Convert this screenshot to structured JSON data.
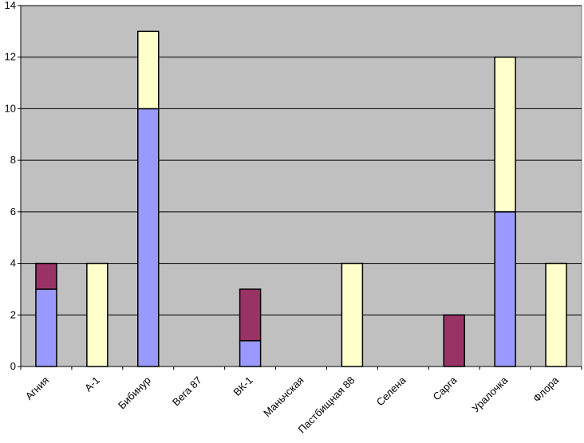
{
  "chart_data": {
    "type": "bar",
    "stacked": true,
    "title": "",
    "xlabel": "",
    "ylabel": "",
    "ylim": [
      0,
      14
    ],
    "yticks": [
      0,
      2,
      4,
      6,
      8,
      10,
      12,
      14
    ],
    "grid": true,
    "legend": "none",
    "categories": [
      "Агния",
      "А-1",
      "Бибинур",
      "Вега 87",
      "ВК-1",
      "Маньчская",
      "Пастбищная 88",
      "Селена",
      "Сарга",
      "Уралочка",
      "Флора"
    ],
    "series": [
      {
        "color": "#9999ff",
        "values": [
          3,
          0,
          10,
          0,
          1,
          0,
          0,
          0,
          0,
          6,
          0
        ]
      },
      {
        "color": "#993366",
        "values": [
          1,
          0,
          0,
          0,
          2,
          0,
          0,
          0,
          2,
          0,
          0
        ]
      },
      {
        "color": "#ffffcc",
        "values": [
          0,
          4,
          3,
          0,
          0,
          0,
          4,
          0,
          0,
          6,
          4
        ]
      }
    ],
    "colors": {
      "plot_background": "#c0c0c0",
      "gridline": "#000000",
      "bar_outline": "#000000"
    }
  }
}
